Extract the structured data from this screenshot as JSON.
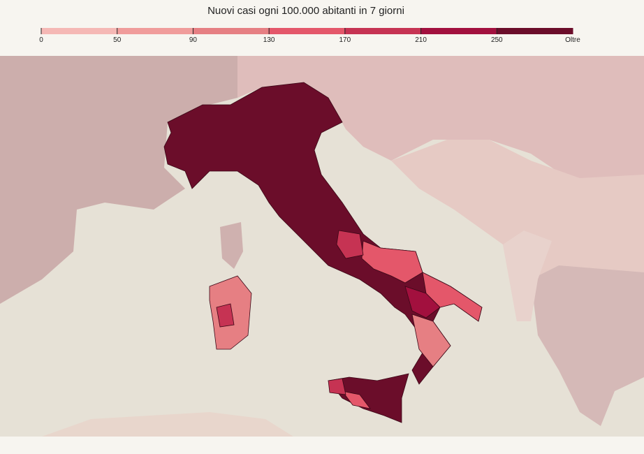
{
  "legend": {
    "title": "Nuovi casi ogni 100.000 abitanti in 7 giorni",
    "ticks": [
      0,
      50,
      90,
      130,
      170,
      210,
      250
    ],
    "end_label": "Oltre",
    "colors": [
      "#f5b8b5",
      "#f09c9b",
      "#e67f83",
      "#e4576a",
      "#c63353",
      "#a2103e",
      "#6b0d2a"
    ]
  }
}
